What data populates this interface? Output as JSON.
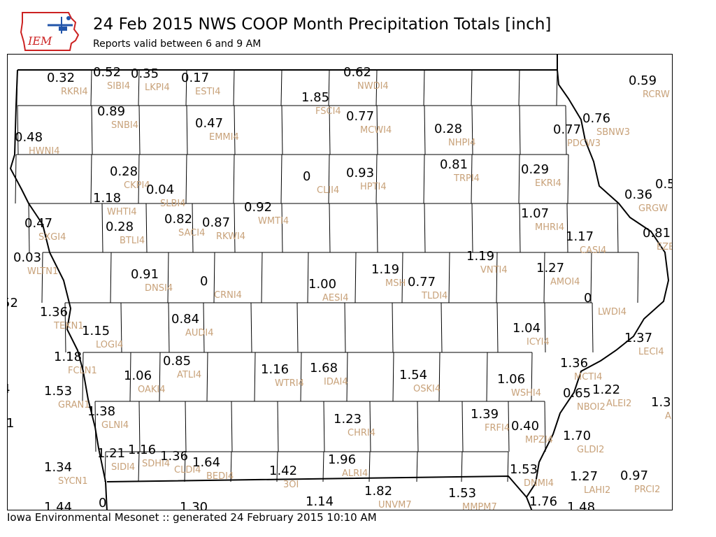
{
  "header": {
    "title": "24 Feb 2015 NWS COOP Month Precipitation Totals [inch]",
    "subtitle": "Reports valid between 6 and 9 AM",
    "logo_text": "IEM"
  },
  "footer": {
    "text": "Iowa Environmental Mesonet :: generated 24 February 2015 10:10 AM"
  },
  "colors": {
    "value_text": "#000000",
    "station_text": "#c8a27a",
    "border": "#000000",
    "logo_red": "#cc2222",
    "logo_blue": "#2255aa"
  },
  "stations": [
    {
      "value": "0.32",
      "id": "RKRI4"
    },
    {
      "value": "0.52",
      "id": "SIBI4"
    },
    {
      "value": "0.35",
      "id": "LKPI4"
    },
    {
      "value": "0.17",
      "id": "ESTI4"
    },
    {
      "value": "0.62",
      "id": "NWDI4"
    },
    {
      "value": "0.59",
      "id": "RCRW"
    },
    {
      "value": "1.85",
      "id": "FSCI4"
    },
    {
      "value": "0.89",
      "id": "SNBI4"
    },
    {
      "value": "0.77",
      "id": "MCWI4"
    },
    {
      "value": "0.76",
      "id": "SBNW3"
    },
    {
      "value": "0.47",
      "id": "EMMI4"
    },
    {
      "value": "0.28",
      "id": "NHPI4"
    },
    {
      "value": "0.77",
      "id": "PDCW3"
    },
    {
      "value": "0.48",
      "id": "HWNI4"
    },
    {
      "value": "0.28",
      "id": "CKPI4"
    },
    {
      "value": "0",
      "id": "CLII4"
    },
    {
      "value": "0.93",
      "id": "HPTI4"
    },
    {
      "value": "0.81",
      "id": "TRPI4"
    },
    {
      "value": "0.29",
      "id": "EKRI4"
    },
    {
      "value": "0.04",
      "id": "SLBI4"
    },
    {
      "value": "0.36",
      "id": "GRGW"
    },
    {
      "value": "0.5",
      "id": ""
    },
    {
      "value": "1.18",
      "id": "WHTI4"
    },
    {
      "value": "0.92",
      "id": "WMTI4"
    },
    {
      "value": "1.07",
      "id": "MHRI4"
    },
    {
      "value": "0.47",
      "id": "SXGI4"
    },
    {
      "value": "0.28",
      "id": "BTLI4"
    },
    {
      "value": "0.82",
      "id": "SACI4"
    },
    {
      "value": "0.87",
      "id": "RKWI4"
    },
    {
      "value": "0.81",
      "id": "EZE"
    },
    {
      "value": "1.17",
      "id": "CASI4"
    },
    {
      "value": "1.19",
      "id": "VNTI4"
    },
    {
      "value": "0.03",
      "id": "WLTN1"
    },
    {
      "value": "1.27",
      "id": "AMOI4"
    },
    {
      "value": "0.91",
      "id": "DNSI4"
    },
    {
      "value": "1.19",
      "id": "MSH"
    },
    {
      "value": "0",
      "id": "CRNI4"
    },
    {
      "value": "0.77",
      "id": "TLDI4"
    },
    {
      "value": "1.00",
      "id": "AESI4"
    },
    {
      "value": "0",
      "id": "LWDI4"
    },
    {
      "value": "52",
      "id": ""
    },
    {
      "value": "1.36",
      "id": "TEKN1"
    },
    {
      "value": "0.84",
      "id": "AUDI4"
    },
    {
      "value": "1.15",
      "id": "LOGI4"
    },
    {
      "value": "1.04",
      "id": "ICYI4"
    },
    {
      "value": "1.37",
      "id": "LECI4"
    },
    {
      "value": "1.18",
      "id": "FCLN1"
    },
    {
      "value": "0.85",
      "id": "ATLI4"
    },
    {
      "value": "1.36",
      "id": "MCTI4"
    },
    {
      "value": "1.16",
      "id": "WTRI4"
    },
    {
      "value": "1.68",
      "id": "IDAI4"
    },
    {
      "value": "1.06",
      "id": "OAKI4"
    },
    {
      "value": "1.54",
      "id": "OSKI4"
    },
    {
      "value": "1.06",
      "id": "WSHI4"
    },
    {
      "value": "1.22",
      "id": "ALEI2"
    },
    {
      "value": "4",
      "id": ""
    },
    {
      "value": "1.53",
      "id": "GRAN1"
    },
    {
      "value": "0.65",
      "id": "NBOI2"
    },
    {
      "value": "1.3",
      "id": "A"
    },
    {
      "value": "1.38",
      "id": "GLNI4"
    },
    {
      "value": "1.39",
      "id": "FRFI4"
    },
    {
      "value": "1.23",
      "id": "CHRI4"
    },
    {
      "value": "1",
      "id": ""
    },
    {
      "value": "0.40",
      "id": "MPZI4"
    },
    {
      "value": "1.70",
      "id": "GLDI2"
    },
    {
      "value": "1.21",
      "id": "SIDI4"
    },
    {
      "value": "1.16",
      "id": "SDHI4"
    },
    {
      "value": "1.36",
      "id": "CLDI4"
    },
    {
      "value": "1.64",
      "id": "BEDI4"
    },
    {
      "value": "1.96",
      "id": "ALRI4"
    },
    {
      "value": "1.34",
      "id": "SYCN1"
    },
    {
      "value": "1.42",
      "id": "3OI"
    },
    {
      "value": "1.53",
      "id": "DNMI4"
    },
    {
      "value": "1.27",
      "id": "LAHI2"
    },
    {
      "value": "0.97",
      "id": "PRCI2"
    },
    {
      "value": "1.82",
      "id": "UNVM7"
    },
    {
      "value": "1.53",
      "id": "MMPM7"
    },
    {
      "value": "1.14",
      "id": ""
    },
    {
      "value": "1.44",
      "id": ""
    },
    {
      "value": "0",
      "id": ""
    },
    {
      "value": "1.30",
      "id": ""
    },
    {
      "value": "1.76",
      "id": ""
    },
    {
      "value": "1.48",
      "id": ""
    }
  ]
}
